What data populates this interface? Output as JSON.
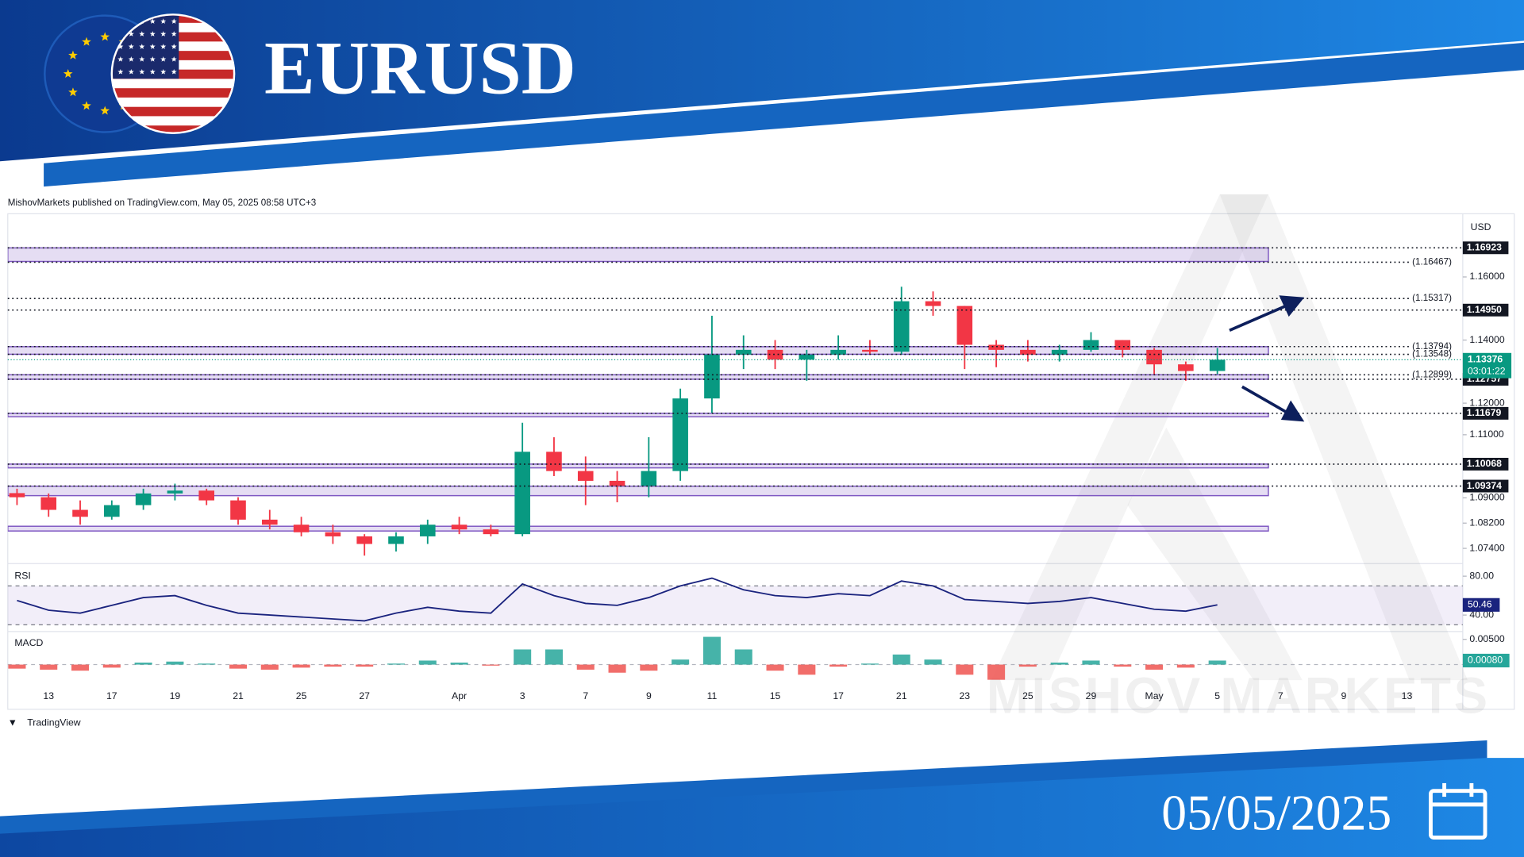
{
  "header": {
    "title": "EURUSD",
    "date": "05/05/2025"
  },
  "attribution": "MishovMarkets published on TradingView.com, May 05, 2025 08:58 UTC+3",
  "footer_logo": "TradingView",
  "watermark": "MISHOV MARKETS",
  "chart_data": [
    {
      "type": "candlestick",
      "currency": "USD",
      "categories": [
        null,
        "13",
        null,
        "17",
        null,
        "19",
        null,
        "21",
        null,
        "25",
        null,
        "27",
        null,
        null,
        "Apr",
        null,
        "3",
        null,
        "7",
        null,
        "9",
        null,
        "11",
        null,
        "15",
        null,
        "17",
        null,
        "21",
        null,
        "23",
        null,
        "25",
        null,
        "29",
        null,
        "May",
        null,
        "5",
        null,
        "7",
        null,
        "9",
        null,
        "13",
        null
      ],
      "open": [
        1.0915,
        1.0902,
        1.0862,
        1.084,
        1.0877,
        1.0914,
        1.0923,
        1.0892,
        1.0831,
        1.0815,
        1.0791,
        1.0778,
        1.0754,
        1.0778,
        1.0815,
        1.08,
        1.0785,
        1.1046,
        1.0985,
        1.0954,
        1.0938,
        1.0985,
        1.1215,
        1.1354,
        1.1369,
        1.1338,
        1.1354,
        1.1369,
        1.1363,
        1.1523,
        1.1508,
        1.1385,
        1.1369,
        1.1354,
        1.1369,
        1.14,
        1.1369,
        1.1323,
        1.1302,
        null,
        null,
        null,
        null,
        null,
        null,
        null
      ],
      "high": [
        1.0929,
        1.0914,
        1.0892,
        1.0892,
        1.0929,
        1.0945,
        1.0929,
        1.0902,
        1.0862,
        1.084,
        1.0815,
        1.0785,
        1.0791,
        1.0831,
        1.084,
        1.0815,
        1.1138,
        1.1092,
        1.1031,
        1.0985,
        1.1092,
        1.1246,
        1.1477,
        1.1415,
        1.14,
        1.1369,
        1.1415,
        1.14,
        1.1569,
        1.1554,
        1.1508,
        1.14,
        1.14,
        1.1385,
        1.1425,
        1.14,
        1.1375,
        1.1332,
        1.1375,
        null,
        null,
        null,
        null,
        null,
        null,
        null
      ],
      "low": [
        1.0877,
        1.084,
        1.0815,
        1.0831,
        1.0862,
        1.0892,
        1.0877,
        1.0815,
        1.08,
        1.0778,
        1.0754,
        1.0717,
        1.073,
        1.0754,
        1.0785,
        1.0778,
        1.0778,
        1.0969,
        1.0877,
        1.0886,
        1.0902,
        1.0954,
        1.1169,
        1.1308,
        1.1308,
        1.1271,
        1.1338,
        1.1354,
        1.1354,
        1.1477,
        1.1308,
        1.1314,
        1.1332,
        1.1332,
        1.1363,
        1.1345,
        1.1292,
        1.1271,
        1.1292,
        null,
        null,
        null,
        null,
        null,
        null,
        null
      ],
      "close": [
        1.0902,
        1.0862,
        1.084,
        1.0877,
        1.0914,
        1.0923,
        1.0892,
        1.0831,
        1.0815,
        1.0791,
        1.0778,
        1.0754,
        1.0778,
        1.0815,
        1.08,
        1.0785,
        1.1046,
        1.0985,
        1.0954,
        1.0938,
        1.0985,
        1.1215,
        1.1354,
        1.1369,
        1.1338,
        1.1354,
        1.1369,
        1.1363,
        1.1523,
        1.1508,
        1.1385,
        1.1369,
        1.1354,
        1.1369,
        1.14,
        1.1369,
        1.1323,
        1.1302,
        1.13376,
        null,
        null,
        null,
        null,
        null,
        null,
        null
      ],
      "up_color": "#089981",
      "down_color": "#f23645",
      "ylim": [
        1.0698,
        1.1794
      ],
      "yticks": [
        {
          "value": 1.16,
          "label": "1.16000"
        },
        {
          "value": 1.14,
          "label": "1.14000"
        },
        {
          "value": 1.12,
          "label": "1.12000"
        },
        {
          "value": 1.11,
          "label": "1.11000"
        },
        {
          "value": 1.09,
          "label": "1.09000"
        },
        {
          "value": 1.082,
          "label": "1.08200"
        },
        {
          "value": 1.074,
          "label": "1.07400"
        }
      ],
      "zone_color": "#7e57c2",
      "zones": [
        [
          1.1649,
          1.1692
        ],
        [
          1.1355,
          1.1379
        ],
        [
          1.1276,
          1.129
        ],
        [
          1.1157,
          1.1168
        ],
        [
          1.0995,
          1.1007
        ],
        [
          1.0907,
          1.0937
        ],
        [
          1.0795,
          1.081
        ]
      ],
      "levels": [
        1.16923,
        {
          "value": 1.16467,
          "label": "(1.16467)"
        },
        {
          "value": 1.15317,
          "label": "(1.15317)"
        },
        1.1495,
        {
          "value": 1.13794,
          "label": "(1.13794)"
        },
        {
          "value": 1.13548,
          "label": "(1.13548)"
        },
        {
          "value": 1.12899,
          "label": "(1.12899)"
        },
        1.12757,
        1.11679,
        1.10068,
        1.09374
      ],
      "level_labels": [
        "1.16923",
        null,
        null,
        "1.14950",
        null,
        null,
        null,
        "1.12757",
        "1.11679",
        "1.10068",
        "1.09374"
      ],
      "last_price": 1.13376,
      "countdown": "03:01:22"
    },
    {
      "type": "line",
      "title": "RSI",
      "values": [
        55,
        45,
        42,
        50,
        58,
        60,
        50,
        42,
        40,
        38,
        36,
        34,
        42,
        48,
        44,
        42,
        72,
        60,
        52,
        50,
        58,
        70,
        78,
        66,
        60,
        58,
        62,
        60,
        75,
        70,
        56,
        54,
        52,
        54,
        58,
        52,
        46,
        44,
        50.46,
        null,
        null,
        null,
        null,
        null,
        null,
        null
      ],
      "color": "#1a237e",
      "band": [
        30,
        70
      ],
      "ylim": [
        28,
        90
      ],
      "yticks": [
        {
          "value": 80,
          "label": "80.00"
        },
        {
          "value": 40,
          "label": "40.00"
        }
      ],
      "last_value": 50.46
    },
    {
      "type": "bar",
      "title": "MACD",
      "values": [
        -0.0008,
        -0.001,
        -0.0012,
        -0.0006,
        0.0004,
        0.0006,
        0.0002,
        -0.0008,
        -0.001,
        -0.0006,
        -0.0004,
        -0.0004,
        0.0002,
        0.0008,
        0.0004,
        -0.0002,
        0.003,
        0.003,
        -0.001,
        -0.0016,
        -0.0012,
        0.001,
        0.0055,
        0.003,
        -0.0012,
        -0.002,
        -0.0004,
        0.0002,
        0.002,
        0.001,
        -0.002,
        -0.003,
        -0.0004,
        0.0004,
        0.0008,
        -0.0004,
        -0.001,
        -0.0006,
        0.0008,
        null,
        null,
        null,
        null,
        null,
        null,
        null
      ],
      "positive_color": "#26a69a",
      "negative_color": "#ef5350",
      "ylim": [
        -0.00404,
        0.00654
      ],
      "yticks": [
        {
          "value": 0.005,
          "label": "0.00500"
        }
      ],
      "last_value": {
        "value": 0.0008,
        "label": "0.00080"
      }
    }
  ]
}
